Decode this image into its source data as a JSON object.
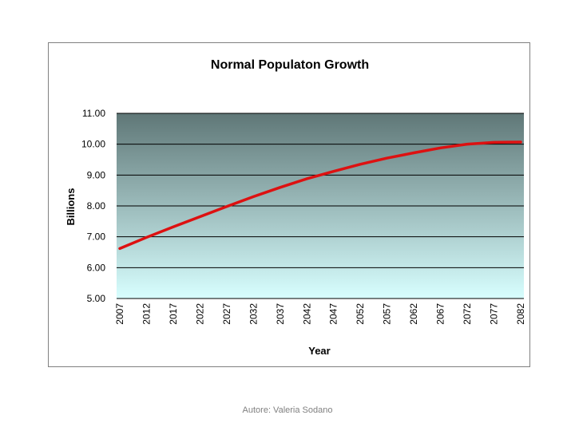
{
  "chart_data": {
    "type": "line",
    "title": "Normal Populaton Growth",
    "xlabel": "Year",
    "ylabel": "Billions",
    "x_ticks": [
      "2007",
      "2012",
      "2017",
      "2022",
      "2027",
      "2032",
      "2037",
      "2042",
      "2047",
      "2052",
      "2057",
      "2062",
      "2067",
      "2072",
      "2077",
      "2082"
    ],
    "y_ticks": [
      "11.00",
      "10.00",
      "9.00",
      "8.00",
      "7.00",
      "6.00",
      "5.00"
    ],
    "ylim": [
      5,
      11
    ],
    "xlim": [
      2007,
      2082
    ],
    "grid": true,
    "legend": "none",
    "series": [
      {
        "color": "#dd1111",
        "x": [
          2007,
          2012,
          2017,
          2022,
          2027,
          2032,
          2037,
          2042,
          2047,
          2052,
          2057,
          2062,
          2067,
          2072,
          2077,
          2082
        ],
        "values": [
          6.62,
          6.98,
          7.32,
          7.65,
          7.98,
          8.3,
          8.6,
          8.88,
          9.12,
          9.35,
          9.55,
          9.72,
          9.88,
          10.0,
          10.06,
          10.07
        ]
      }
    ],
    "colors": {
      "plot_top": "#5f7777",
      "plot_bottom": "#d8ffff",
      "line": "#dd1111",
      "grid": "#000000"
    }
  },
  "footer": "Autore: Valeria Sodano"
}
